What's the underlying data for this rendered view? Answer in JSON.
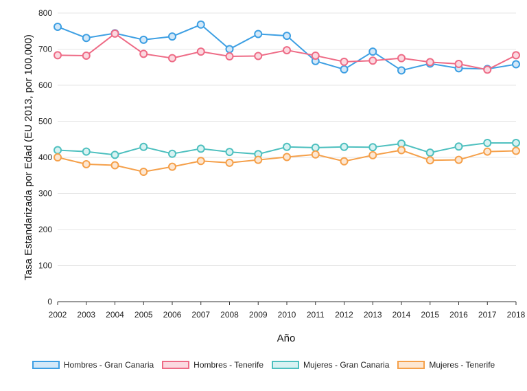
{
  "chart_data": {
    "type": "line",
    "xlabel": "Año",
    "ylabel": "Tasa Estandarizada por Edad (EU 2013, por 100,000)",
    "ylim": [
      0,
      800
    ],
    "yticks": [
      0,
      100,
      200,
      300,
      400,
      500,
      600,
      700,
      800
    ],
    "x": [
      "2002",
      "2003",
      "2004",
      "2005",
      "2006",
      "2007",
      "2008",
      "2009",
      "2010",
      "2011",
      "2012",
      "2013",
      "2014",
      "2015",
      "2016",
      "2017",
      "2018"
    ],
    "grid": true,
    "legend_position": "bottom",
    "series": [
      {
        "name": "Hombres - Gran Canaria",
        "color": "#3d9fe3",
        "fill": "#d3e8f8",
        "values": [
          762,
          731,
          744,
          726,
          735,
          768,
          700,
          742,
          737,
          667,
          644,
          693,
          641,
          660,
          647,
          645,
          658
        ]
      },
      {
        "name": "Hombres - Tenerife",
        "color": "#ee6b86",
        "fill": "#fbd9e0",
        "values": [
          683,
          682,
          743,
          687,
          675,
          693,
          680,
          681,
          697,
          682,
          665,
          668,
          675,
          664,
          659,
          643,
          683
        ]
      },
      {
        "name": "Mujeres - Gran Canaria",
        "color": "#4ec0bf",
        "fill": "#d8f2f2",
        "values": [
          420,
          416,
          407,
          429,
          410,
          424,
          415,
          409,
          429,
          427,
          429,
          428,
          438,
          413,
          430,
          440,
          440
        ]
      },
      {
        "name": "Mujeres - Tenerife",
        "color": "#f5a04a",
        "fill": "#fde7d2",
        "values": [
          400,
          381,
          378,
          360,
          374,
          390,
          385,
          393,
          401,
          408,
          389,
          406,
          420,
          392,
          393,
          416,
          418
        ]
      }
    ]
  }
}
